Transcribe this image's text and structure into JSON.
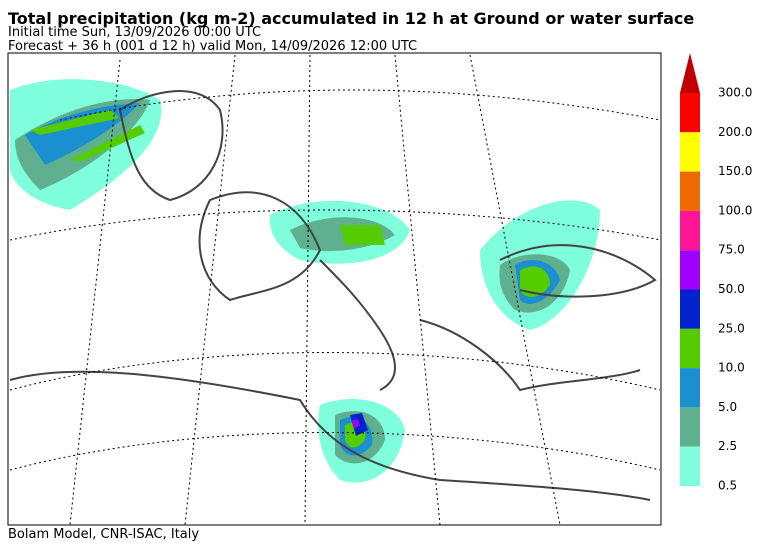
{
  "header": {
    "title": "Total precipitation (kg m-2) accumulated in  12 h at Ground or water surface",
    "initial_time": "Initial time  Sun, 13/09/2026  00:00 UTC",
    "forecast": "Forecast  +  36 h  (001 d 12 h)  valid Mon, 14/09/2026 12:00 UTC"
  },
  "legend": {
    "labels": [
      "300.0",
      "200.0",
      "150.0",
      "100.0",
      "75.0",
      "50.0",
      "25.0",
      "10.0",
      "5.0",
      "2.5",
      "0.5"
    ],
    "colors": [
      "#c00000",
      "#ff0000",
      "#ffff00",
      "#ee6a00",
      "#ff1493",
      "#a000ff",
      "#0022cc",
      "#55cc00",
      "#1a90d0",
      "#5fb08f",
      "#80ffdd"
    ]
  },
  "footer": {
    "credit": "Bolam Model, CNR-ISAC, Italy"
  }
}
